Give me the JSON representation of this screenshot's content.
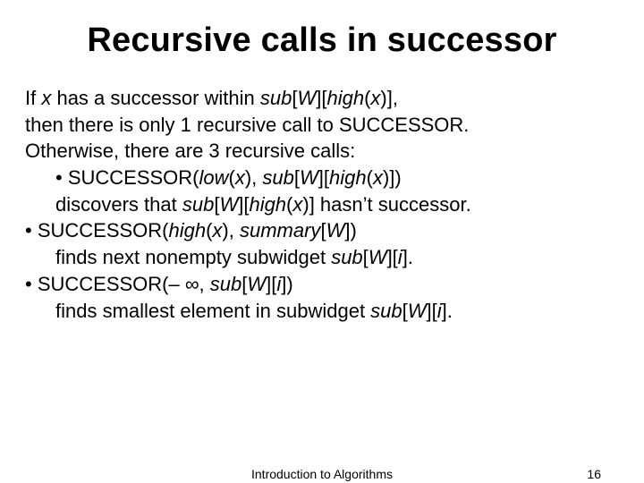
{
  "title": "Recursive calls in successor",
  "body": {
    "l1a": "If ",
    "l1b": "x",
    "l1c": " has a successor within ",
    "l1d": "sub",
    "l1e": "[",
    "l1f": "W",
    "l1g": "][",
    "l1h": "high",
    "l1i": "(",
    "l1j": "x",
    "l1k": ")],",
    "l2": "then there is only 1 recursive call to SUCCESSOR.",
    "l3": "Otherwise, there are 3 recursive calls:",
    "b1a": "• SUCCESSOR(",
    "b1b": "low",
    "b1c": "(",
    "b1d": "x",
    "b1e": "), ",
    "b1f": "sub",
    "b1g": "[",
    "b1h": "W",
    "b1i": "][",
    "b1j": "high",
    "b1k": "(",
    "b1l": "x",
    "b1m": ")])",
    "b1n_a": "discovers that ",
    "b1n_b": "sub",
    "b1n_c": "[",
    "b1n_d": "W",
    "b1n_e": "][",
    "b1n_f": "high",
    "b1n_g": "(",
    "b1n_h": "x",
    "b1n_i": ")] hasn’t successor.",
    "b2a": "• SUCCESSOR(",
    "b2b": "high",
    "b2c": "(",
    "b2d": "x",
    "b2e": "), ",
    "b2f": "summary",
    "b2g": "[",
    "b2h": "W",
    "b2i": "])",
    "b2n_a": "finds next nonempty subwidget ",
    "b2n_b": "sub",
    "b2n_c": "[",
    "b2n_d": "W",
    "b2n_e": "][",
    "b2n_f": "i",
    "b2n_g": "].",
    "b3a": "• SUCCESSOR(– ∞, ",
    "b3b": "sub",
    "b3c": "[",
    "b3d": "W",
    "b3e": "][",
    "b3f": "i",
    "b3g": "])",
    "b3n_a": "finds smallest element in subwidget ",
    "b3n_b": "sub",
    "b3n_c": "[",
    "b3n_d": "W",
    "b3n_e": "][",
    "b3n_f": "i",
    "b3n_g": "]."
  },
  "footer": {
    "center": "Introduction to Algorithms",
    "page": "16"
  },
  "colors": {
    "text": "#000000",
    "background": "#ffffff"
  },
  "typography": {
    "title_fontsize": 38,
    "body_fontsize": 22,
    "footer_fontsize": 14,
    "font_family": "Arial"
  }
}
